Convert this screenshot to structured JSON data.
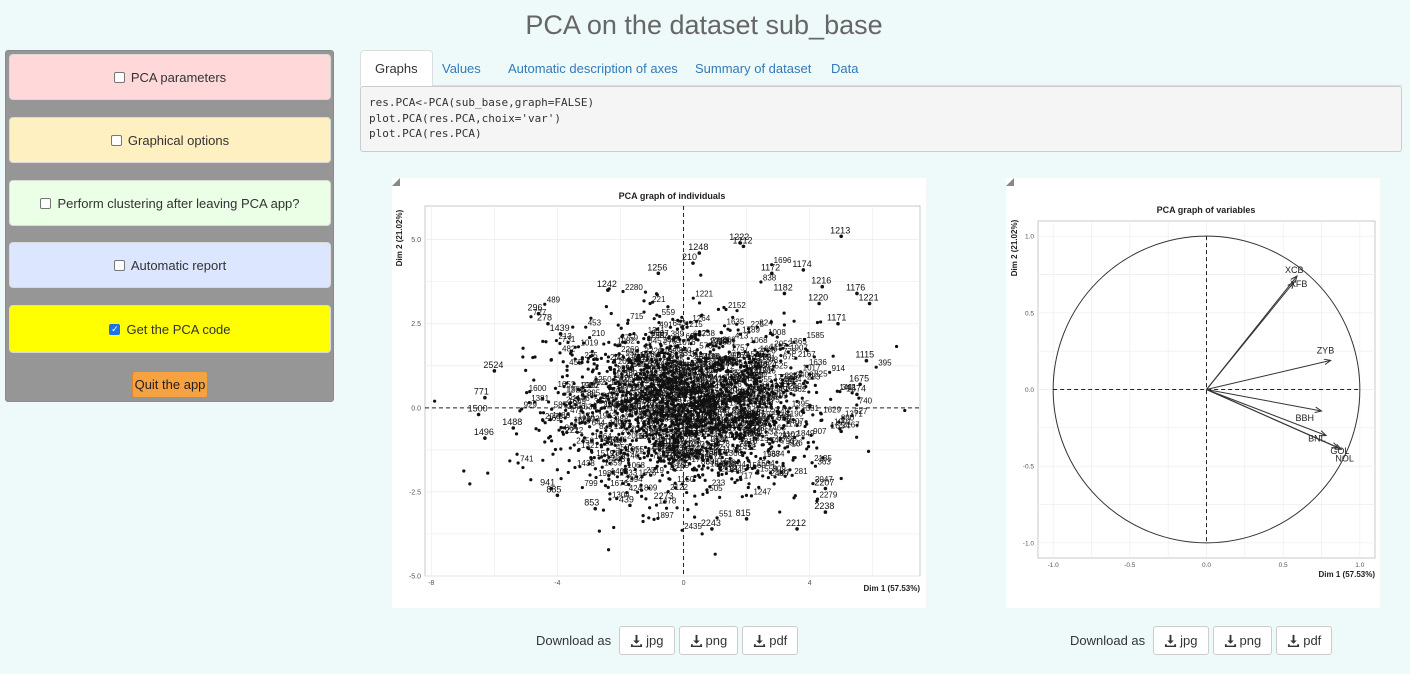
{
  "page_title": "PCA on the dataset sub_base",
  "sidebar": {
    "panels": [
      {
        "label": "PCA parameters",
        "checked": false
      },
      {
        "label": "Graphical options",
        "checked": false
      },
      {
        "label": "Perform clustering after leaving PCA app?",
        "checked": false
      },
      {
        "label": "Automatic report",
        "checked": false
      },
      {
        "label": "Get the PCA code",
        "checked": true
      }
    ],
    "quit_label": "Quit the app"
  },
  "tabs": [
    "Graphs",
    "Values",
    "Automatic description of axes",
    "Summary of dataset",
    "Data"
  ],
  "active_tab": "Graphs",
  "code_lines": [
    "res.PCA<-PCA(sub_base,graph=FALSE)",
    "plot.PCA(res.PCA,choix='var')",
    "plot.PCA(res.PCA)"
  ],
  "download": {
    "label": "Download as",
    "formats": [
      "jpg",
      "png",
      "pdf"
    ]
  },
  "chart_data": [
    {
      "type": "scatter",
      "title": "PCA graph of individuals",
      "xlabel": "Dim 1 (57.53%)",
      "ylabel": "Dim 2 (21.02%)",
      "xlim": [
        -8.2,
        7.5
      ],
      "ylim": [
        -5.0,
        6.0
      ],
      "xticks": [
        -8,
        -4,
        0,
        4
      ],
      "yticks": [
        -5.0,
        -2.5,
        0.0,
        2.5,
        5.0
      ],
      "grid": true,
      "labeled_points": [
        {
          "label": "1213",
          "x": 5.0,
          "y": 5.1
        },
        {
          "label": "1222",
          "x": 1.8,
          "y": 4.9
        },
        {
          "label": "1212",
          "x": 1.9,
          "y": 4.8
        },
        {
          "label": "1248",
          "x": 0.5,
          "y": 4.6
        },
        {
          "label": "210",
          "x": 0.3,
          "y": 4.3
        },
        {
          "label": "1174",
          "x": 3.8,
          "y": 4.1
        },
        {
          "label": "1172",
          "x": 2.8,
          "y": 4.0
        },
        {
          "label": "1256",
          "x": -0.8,
          "y": 4.0
        },
        {
          "label": "1242",
          "x": -2.4,
          "y": 3.5
        },
        {
          "label": "1216",
          "x": 4.4,
          "y": 3.6
        },
        {
          "label": "1176",
          "x": 5.5,
          "y": 3.4
        },
        {
          "label": "1221",
          "x": 5.9,
          "y": 3.1
        },
        {
          "label": "1220",
          "x": 4.3,
          "y": 3.1
        },
        {
          "label": "1182",
          "x": 3.2,
          "y": 3.4
        },
        {
          "label": "296",
          "x": -4.6,
          "y": 2.8
        },
        {
          "label": "278",
          "x": -4.3,
          "y": 2.5
        },
        {
          "label": "1171",
          "x": 4.9,
          "y": 2.5
        },
        {
          "label": "1439",
          "x": -3.9,
          "y": 2.2
        },
        {
          "label": "1115",
          "x": 5.8,
          "y": 1.4
        },
        {
          "label": "1675",
          "x": 5.6,
          "y": 0.7
        },
        {
          "label": "1674",
          "x": 5.5,
          "y": 0.4
        },
        {
          "label": "2524",
          "x": -6.0,
          "y": 1.1
        },
        {
          "label": "771",
          "x": -6.3,
          "y": 0.3
        },
        {
          "label": "1500",
          "x": -6.5,
          "y": -0.2
        },
        {
          "label": "1488",
          "x": -5.4,
          "y": -0.6
        },
        {
          "label": "1496",
          "x": -6.3,
          "y": -0.9
        },
        {
          "label": "1654",
          "x": 5.0,
          "y": -0.7
        },
        {
          "label": "2238",
          "x": 4.5,
          "y": -3.1
        },
        {
          "label": "2212",
          "x": 3.6,
          "y": -3.6
        },
        {
          "label": "2243",
          "x": 0.9,
          "y": -3.6
        },
        {
          "label": "815",
          "x": 2.0,
          "y": -3.3
        },
        {
          "label": "853",
          "x": -2.8,
          "y": -3.0
        },
        {
          "label": "439",
          "x": -1.7,
          "y": -2.9
        },
        {
          "label": "2273",
          "x": -0.6,
          "y": -2.8
        },
        {
          "label": "941",
          "x": -4.2,
          "y": -2.4
        },
        {
          "label": "885",
          "x": -4.0,
          "y": -2.6
        },
        {
          "label": "2207",
          "x": 4.5,
          "y": -2.4
        }
      ]
    },
    {
      "type": "scatter",
      "title": "PCA graph of variables",
      "xlabel": "Dim 1 (57.53%)",
      "ylabel": "Dim 2 (21.02%)",
      "xlim": [
        -1.0,
        1.0
      ],
      "ylim": [
        -1.0,
        1.0
      ],
      "xticks": [
        -1.0,
        -0.5,
        0.0,
        0.5,
        1.0
      ],
      "yticks": [
        -1.0,
        -0.5,
        0.0,
        0.5,
        1.0
      ],
      "grid": true,
      "correlation_circle": true,
      "series": [
        {
          "name": "XCB",
          "x": 0.59,
          "y": 0.74
        },
        {
          "name": "XFB",
          "x": 0.57,
          "y": 0.7
        },
        {
          "name": "ZYB",
          "x": 0.81,
          "y": 0.19
        },
        {
          "name": "BBH",
          "x": 0.75,
          "y": -0.14
        },
        {
          "name": "BNL",
          "x": 0.78,
          "y": -0.3
        },
        {
          "name": "GOL",
          "x": 0.86,
          "y": -0.38
        },
        {
          "name": "NOL",
          "x": 0.88,
          "y": -0.39
        }
      ]
    }
  ]
}
